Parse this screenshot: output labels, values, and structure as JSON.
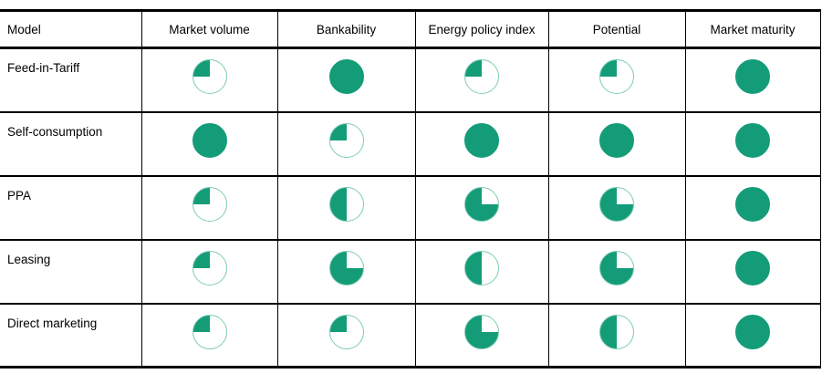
{
  "chart_data": {
    "type": "table",
    "columns": [
      "Model",
      "Market volume",
      "Bankability",
      "Energy policy index",
      "Potential",
      "Market maturity"
    ],
    "rows": [
      {
        "label": "Feed-in-Tariff",
        "values": [
          0.25,
          1,
          0.25,
          0.25,
          1
        ]
      },
      {
        "label": "Self-consumption",
        "values": [
          1,
          0.25,
          1,
          1,
          1
        ]
      },
      {
        "label": "PPA",
        "values": [
          0.25,
          0.5,
          0.75,
          0.75,
          1
        ]
      },
      {
        "label": "Leasing",
        "values": [
          0.25,
          0.75,
          0.5,
          0.75,
          1
        ]
      },
      {
        "label": "Direct marketing",
        "values": [
          0.25,
          0.25,
          0.75,
          0.5,
          1
        ]
      }
    ],
    "value_encoding": "harvey-ball fraction of circle filled (0.25, 0.5, 0.75, 1), filled counter-clockwise starting at 12 o'clock",
    "colors": {
      "ball_fill": "#149c78",
      "ball_ring": "#7fccb2",
      "grid_line": "#000000"
    },
    "layout_hints": {
      "grid": "horizontal and vertical rules, no left outer border",
      "header_position": "top row"
    }
  }
}
